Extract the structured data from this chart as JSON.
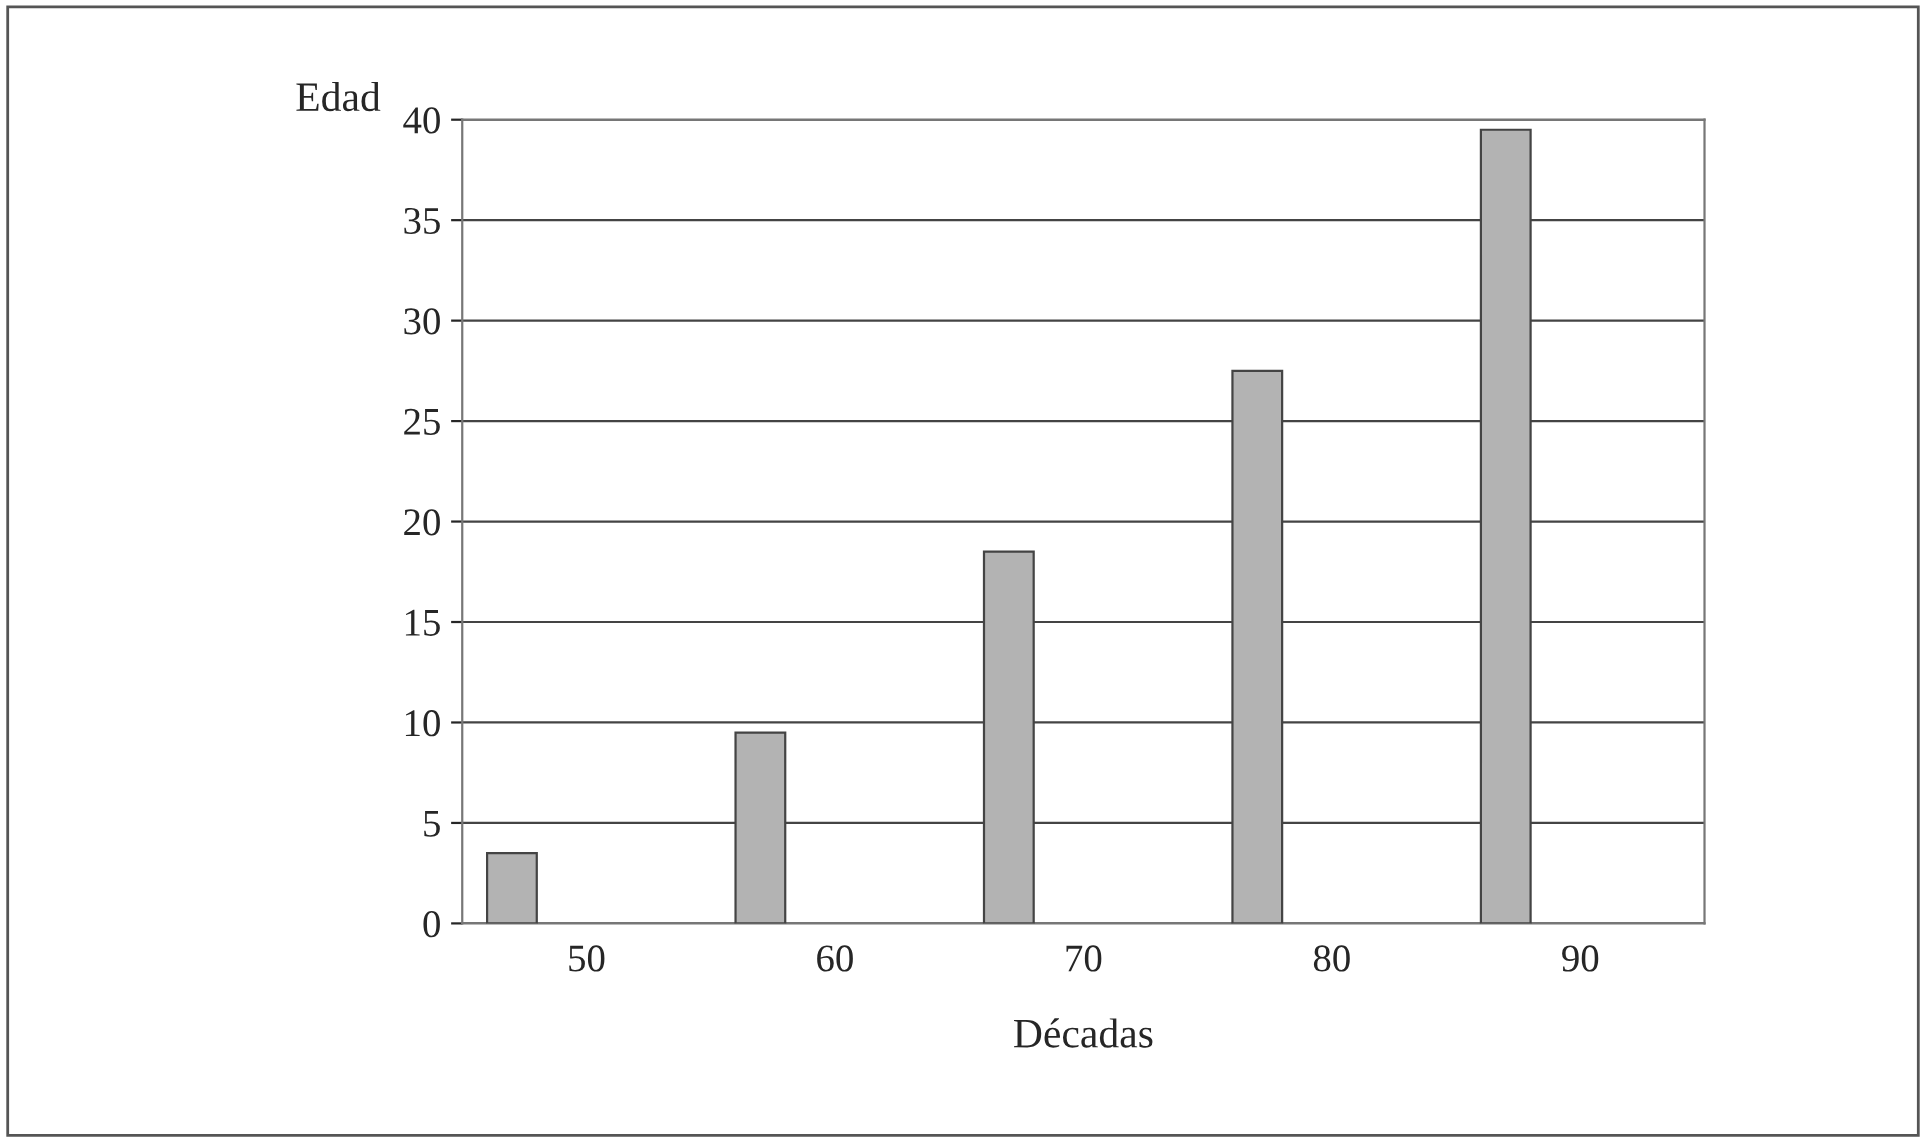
{
  "chart_data": {
    "type": "bar",
    "xlabel": "Décadas",
    "ylabel": "Edad",
    "categories": [
      "50",
      "60",
      "70",
      "80",
      "90"
    ],
    "values": [
      3.5,
      9.5,
      18.5,
      27.5,
      39.5
    ],
    "color": "#b3b3b3",
    "ylim": [
      0,
      40
    ],
    "yticks": [
      0,
      5,
      10,
      15,
      20,
      25,
      30,
      35,
      40
    ],
    "grid": "y",
    "legend": false
  }
}
